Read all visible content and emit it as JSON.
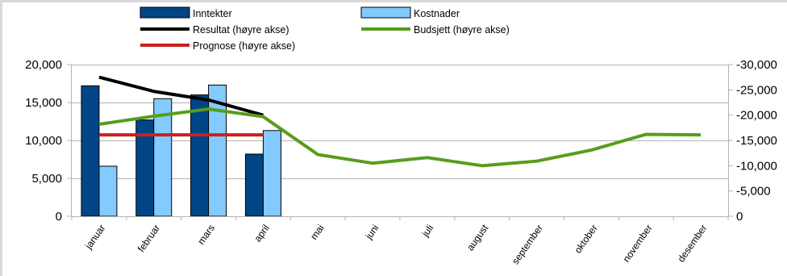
{
  "chart_data": {
    "type": "bar",
    "categories": [
      "januar",
      "februar",
      "mars",
      "april",
      "mai",
      "juni",
      "juli",
      "august",
      "september",
      "oktober",
      "november",
      "desember"
    ],
    "series": [
      {
        "name": "Inntekter",
        "kind": "bar",
        "axis": "left",
        "color": "#004586",
        "values": [
          17200,
          12700,
          16000,
          8200,
          null,
          null,
          null,
          null,
          null,
          null,
          null,
          null
        ]
      },
      {
        "name": "Kostnader",
        "kind": "bar",
        "axis": "left",
        "color": "#83caff",
        "values": [
          6600,
          15500,
          17300,
          11300,
          null,
          null,
          null,
          null,
          null,
          null,
          null,
          null
        ]
      },
      {
        "name": "Resultat (høyre akse)",
        "kind": "line",
        "axis": "right",
        "color": "#000000",
        "values": [
          -27500,
          -24700,
          -23000,
          -20000,
          null,
          null,
          null,
          null,
          null,
          null,
          null,
          null
        ]
      },
      {
        "name": "Budsjett (høyre akse)",
        "kind": "line",
        "axis": "right",
        "color": "#579d1c",
        "values": [
          -18200,
          -19800,
          -21200,
          -19700,
          -12200,
          -10500,
          -11600,
          -10000,
          -10900,
          -13100,
          -16200,
          -16100
        ]
      },
      {
        "name": "Prognose (høyre akse)",
        "kind": "line",
        "axis": "right",
        "color": "#c9211e",
        "values": [
          -16100,
          -16100,
          -16100,
          -16100,
          null,
          null,
          null,
          null,
          null,
          null,
          null,
          null
        ]
      }
    ],
    "y_left": {
      "min": 0,
      "max": 20000,
      "ticks": [
        "0",
        "5,000",
        "10,000",
        "15,000",
        "20,000"
      ]
    },
    "y_right": {
      "min": 0,
      "max": -30000,
      "ticks": [
        "0",
        "-5,000",
        "-10,000",
        "-15,000",
        "-20,000",
        "-25,000",
        "-30,000"
      ]
    },
    "grid": true,
    "legend": "top"
  }
}
